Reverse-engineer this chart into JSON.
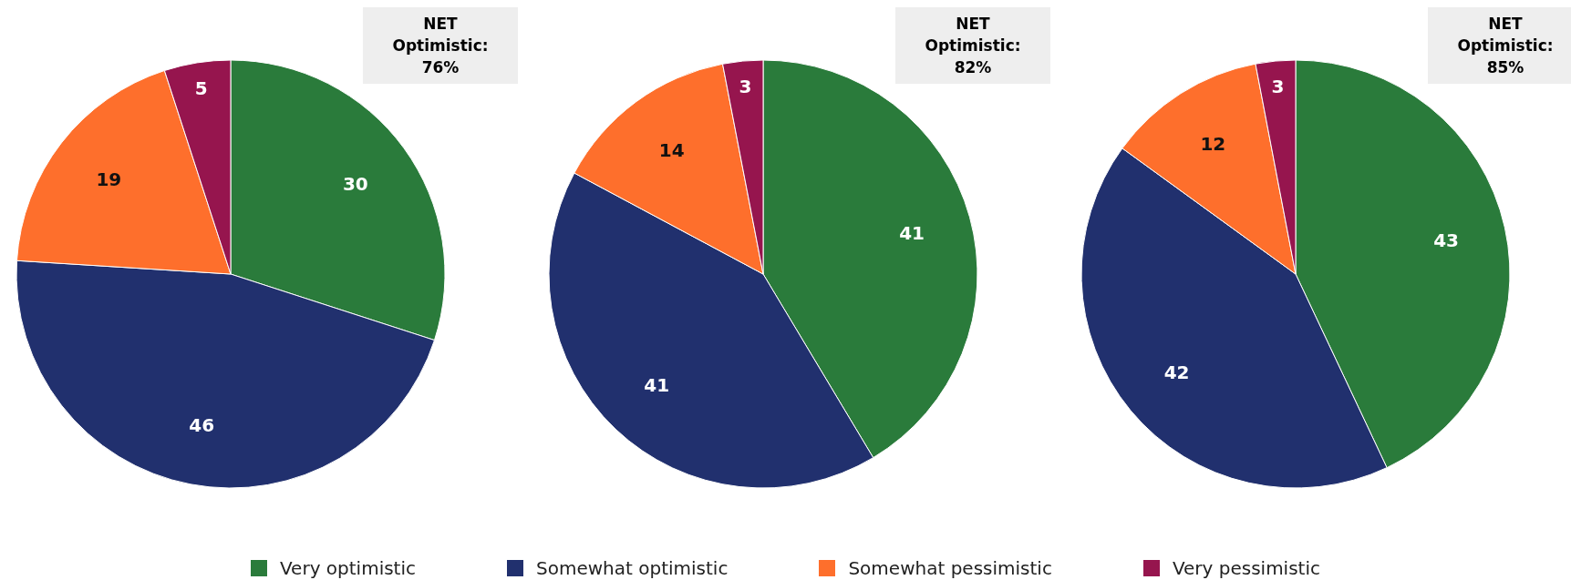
{
  "chart_data": [
    {
      "type": "pie",
      "categories": [
        "Very optimistic",
        "Somewhat optimistic",
        "Somewhat pessimistic",
        "Very pessimistic"
      ],
      "values": [
        30,
        46,
        19,
        5
      ],
      "colors": [
        "#2a7b3b",
        "#21306e",
        "#fe6f2c",
        "#96154e"
      ],
      "data_labels": true,
      "legend": "bottom",
      "annotations": [
        "NET Optimistic: 76%"
      ]
    },
    {
      "type": "pie",
      "categories": [
        null,
        null,
        null,
        null
      ],
      "values": [
        41,
        41,
        14,
        3
      ],
      "colors": [
        "#2a7b3b",
        "#21306e",
        "#fe6f2c",
        "#96154e"
      ],
      "data_labels": true,
      "annotations": [
        "NET Optimistic: 82%"
      ]
    },
    {
      "type": "pie",
      "categories": [
        null,
        null,
        null,
        null
      ],
      "values": [
        43,
        42,
        12,
        3
      ],
      "colors": [
        "#2a7b3b",
        "#21306e",
        "#fe6f2c",
        "#96154e"
      ],
      "data_labels": true,
      "annotations": [
        "NET Optimistic: 85%"
      ]
    }
  ]
}
